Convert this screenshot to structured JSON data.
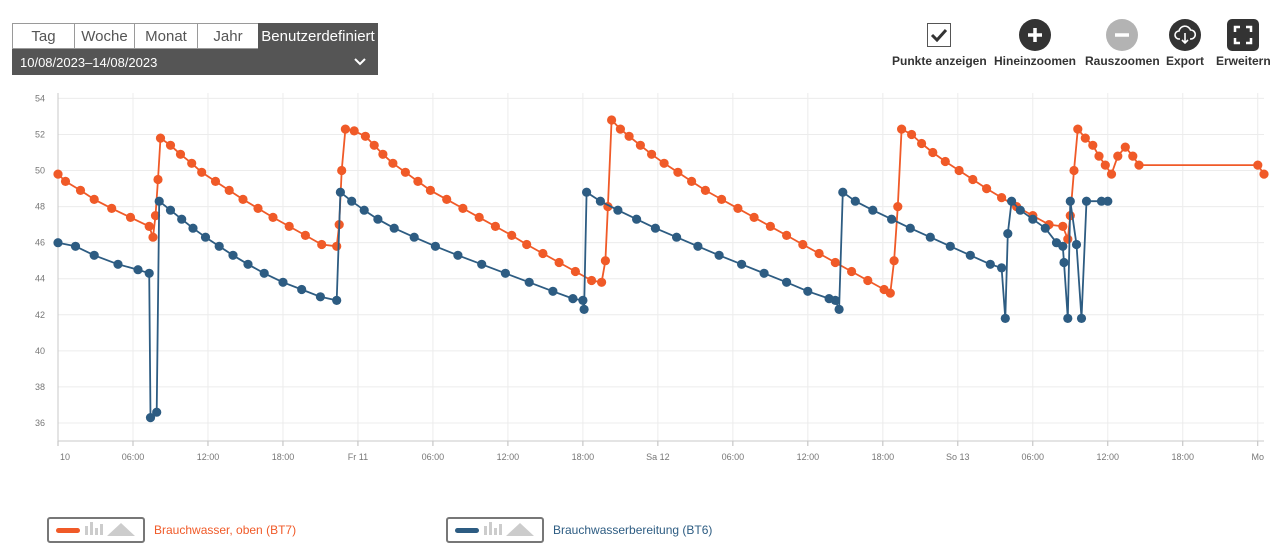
{
  "period_tabs": [
    {
      "label": "Tag",
      "active": false
    },
    {
      "label": "Woche",
      "active": false
    },
    {
      "label": "Monat",
      "active": false
    },
    {
      "label": "Jahr",
      "active": false
    },
    {
      "label": "Benutzerdefiniert",
      "active": true
    }
  ],
  "date_range": "10/08/2023–14/08/2023",
  "toolbar": {
    "show_points": "Punkte anzeigen",
    "zoom_in": "Hineinzoomen",
    "zoom_out": "Rauszoomen",
    "export": "Export",
    "expand": "Erweitern"
  },
  "colors": {
    "bt7": "#f05a28",
    "bt6": "#2d5c82",
    "active_tab": "#555555"
  },
  "chart_data": {
    "type": "line",
    "x_unit": "hours",
    "x_ticks": [
      {
        "t": 0,
        "label": "10"
      },
      {
        "t": 6,
        "label": "06:00"
      },
      {
        "t": 12,
        "label": "12:00"
      },
      {
        "t": 18,
        "label": "18:00"
      },
      {
        "t": 24,
        "label": "Fr 11"
      },
      {
        "t": 30,
        "label": "06:00"
      },
      {
        "t": 36,
        "label": "12:00"
      },
      {
        "t": 42,
        "label": "18:00"
      },
      {
        "t": 48,
        "label": "Sa 12"
      },
      {
        "t": 54,
        "label": "06:00"
      },
      {
        "t": 60,
        "label": "12:00"
      },
      {
        "t": 66,
        "label": "18:00"
      },
      {
        "t": 72,
        "label": "So 13"
      },
      {
        "t": 78,
        "label": "06:00"
      },
      {
        "t": 84,
        "label": "12:00"
      },
      {
        "t": 90,
        "label": "18:00"
      },
      {
        "t": 96,
        "label": "Mo"
      }
    ],
    "y_ticks": [
      36,
      38,
      40,
      42,
      44,
      46,
      48,
      50,
      52,
      54
    ],
    "xlim": [
      0,
      96.5
    ],
    "ylim": [
      35,
      54.3
    ],
    "grid": true,
    "legend_position": "bottom",
    "series": [
      {
        "name": "Brauchwasser, oben (BT7)",
        "color": "#f05a28",
        "points": [
          [
            0,
            49.8
          ],
          [
            0.6,
            49.4
          ],
          [
            1.8,
            48.9
          ],
          [
            2.9,
            48.4
          ],
          [
            4.3,
            47.9
          ],
          [
            5.8,
            47.4
          ],
          [
            7.3,
            46.9
          ],
          [
            7.6,
            46.3
          ],
          [
            7.8,
            47.5
          ],
          [
            8.0,
            49.5
          ],
          [
            8.2,
            51.8
          ],
          [
            9.0,
            51.4
          ],
          [
            9.8,
            50.9
          ],
          [
            10.7,
            50.4
          ],
          [
            11.5,
            49.9
          ],
          [
            12.6,
            49.4
          ],
          [
            13.7,
            48.9
          ],
          [
            14.8,
            48.4
          ],
          [
            16.0,
            47.9
          ],
          [
            17.2,
            47.4
          ],
          [
            18.5,
            46.9
          ],
          [
            19.8,
            46.4
          ],
          [
            21.1,
            45.9
          ],
          [
            22.3,
            45.8
          ],
          [
            22.5,
            47.0
          ],
          [
            22.7,
            50.0
          ],
          [
            23.0,
            52.3
          ],
          [
            23.7,
            52.2
          ],
          [
            24.6,
            51.9
          ],
          [
            25.3,
            51.4
          ],
          [
            26.0,
            50.9
          ],
          [
            26.8,
            50.4
          ],
          [
            27.8,
            49.9
          ],
          [
            28.8,
            49.4
          ],
          [
            29.8,
            48.9
          ],
          [
            31.1,
            48.4
          ],
          [
            32.4,
            47.9
          ],
          [
            33.7,
            47.4
          ],
          [
            35.0,
            46.9
          ],
          [
            36.3,
            46.4
          ],
          [
            37.5,
            45.9
          ],
          [
            38.8,
            45.4
          ],
          [
            40.1,
            44.9
          ],
          [
            41.4,
            44.4
          ],
          [
            42.7,
            43.9
          ],
          [
            43.5,
            43.8
          ],
          [
            43.8,
            45.0
          ],
          [
            44.0,
            48.0
          ],
          [
            44.3,
            52.8
          ],
          [
            45.0,
            52.3
          ],
          [
            45.7,
            51.9
          ],
          [
            46.6,
            51.4
          ],
          [
            47.5,
            50.9
          ],
          [
            48.5,
            50.4
          ],
          [
            49.6,
            49.9
          ],
          [
            50.7,
            49.4
          ],
          [
            51.8,
            48.9
          ],
          [
            53.1,
            48.4
          ],
          [
            54.4,
            47.9
          ],
          [
            55.7,
            47.4
          ],
          [
            57.0,
            46.9
          ],
          [
            58.3,
            46.4
          ],
          [
            59.6,
            45.9
          ],
          [
            60.9,
            45.4
          ],
          [
            62.2,
            44.9
          ],
          [
            63.5,
            44.4
          ],
          [
            64.8,
            43.9
          ],
          [
            66.1,
            43.4
          ],
          [
            66.6,
            43.2
          ],
          [
            66.9,
            45.0
          ],
          [
            67.2,
            48.0
          ],
          [
            67.5,
            52.3
          ],
          [
            68.3,
            52.0
          ],
          [
            69.1,
            51.5
          ],
          [
            70.0,
            51.0
          ],
          [
            71.0,
            50.5
          ],
          [
            72.1,
            50.0
          ],
          [
            73.2,
            49.5
          ],
          [
            74.3,
            49.0
          ],
          [
            75.5,
            48.5
          ],
          [
            76.7,
            48.0
          ],
          [
            78.0,
            47.5
          ],
          [
            79.3,
            47.0
          ],
          [
            80.4,
            46.9
          ],
          [
            80.8,
            46.2
          ],
          [
            81.0,
            47.5
          ],
          [
            81.3,
            50.0
          ],
          [
            81.6,
            52.3
          ],
          [
            82.2,
            51.8
          ],
          [
            82.8,
            51.4
          ],
          [
            83.3,
            50.8
          ],
          [
            83.8,
            50.3
          ],
          [
            84.3,
            49.8
          ],
          [
            84.8,
            50.8
          ],
          [
            85.4,
            51.3
          ],
          [
            86.0,
            50.8
          ],
          [
            86.5,
            50.3
          ],
          [
            96.0,
            50.3
          ],
          [
            96.5,
            49.8
          ]
        ]
      },
      {
        "name": "Brauchwasserbereitung (BT6)",
        "color": "#2d5c82",
        "points": [
          [
            0,
            46.0
          ],
          [
            1.4,
            45.8
          ],
          [
            2.9,
            45.3
          ],
          [
            4.8,
            44.8
          ],
          [
            6.4,
            44.5
          ],
          [
            7.3,
            44.3
          ],
          [
            7.4,
            36.3
          ],
          [
            7.9,
            36.6
          ],
          [
            8.1,
            48.3
          ],
          [
            9.0,
            47.8
          ],
          [
            9.9,
            47.3
          ],
          [
            10.8,
            46.8
          ],
          [
            11.8,
            46.3
          ],
          [
            12.9,
            45.8
          ],
          [
            14.0,
            45.3
          ],
          [
            15.2,
            44.8
          ],
          [
            16.5,
            44.3
          ],
          [
            18.0,
            43.8
          ],
          [
            19.5,
            43.4
          ],
          [
            21.0,
            43.0
          ],
          [
            22.3,
            42.8
          ],
          [
            22.6,
            48.8
          ],
          [
            23.5,
            48.3
          ],
          [
            24.5,
            47.8
          ],
          [
            25.6,
            47.3
          ],
          [
            26.9,
            46.8
          ],
          [
            28.5,
            46.3
          ],
          [
            30.2,
            45.8
          ],
          [
            32.0,
            45.3
          ],
          [
            33.9,
            44.8
          ],
          [
            35.8,
            44.3
          ],
          [
            37.7,
            43.8
          ],
          [
            39.6,
            43.3
          ],
          [
            41.2,
            42.9
          ],
          [
            42.0,
            42.8
          ],
          [
            42.1,
            42.3
          ],
          [
            42.3,
            48.8
          ],
          [
            43.4,
            48.3
          ],
          [
            44.8,
            47.8
          ],
          [
            46.3,
            47.3
          ],
          [
            47.8,
            46.8
          ],
          [
            49.5,
            46.3
          ],
          [
            51.2,
            45.8
          ],
          [
            52.9,
            45.3
          ],
          [
            54.7,
            44.8
          ],
          [
            56.5,
            44.3
          ],
          [
            58.3,
            43.8
          ],
          [
            60.0,
            43.3
          ],
          [
            61.7,
            42.9
          ],
          [
            62.2,
            42.8
          ],
          [
            62.5,
            42.3
          ],
          [
            62.8,
            48.8
          ],
          [
            63.8,
            48.3
          ],
          [
            65.2,
            47.8
          ],
          [
            66.7,
            47.3
          ],
          [
            68.2,
            46.8
          ],
          [
            69.8,
            46.3
          ],
          [
            71.4,
            45.8
          ],
          [
            73.0,
            45.3
          ],
          [
            74.6,
            44.8
          ],
          [
            75.5,
            44.6
          ],
          [
            75.8,
            41.8
          ],
          [
            76.0,
            46.5
          ],
          [
            76.3,
            48.3
          ],
          [
            77.0,
            47.8
          ],
          [
            78.0,
            47.3
          ],
          [
            79.0,
            46.8
          ],
          [
            79.9,
            46.0
          ],
          [
            80.4,
            45.8
          ],
          [
            80.5,
            44.9
          ],
          [
            80.8,
            41.8
          ],
          [
            81.0,
            48.3
          ],
          [
            81.5,
            45.9
          ],
          [
            81.9,
            41.8
          ],
          [
            82.3,
            48.3
          ],
          [
            83.5,
            48.3
          ],
          [
            84.0,
            48.3
          ]
        ]
      }
    ]
  },
  "legend": [
    {
      "label": "Brauchwasser, oben (BT7)",
      "color": "#f05a28"
    },
    {
      "label": "Brauchwasserbereitung (BT6)",
      "color": "#2d5c82"
    }
  ]
}
